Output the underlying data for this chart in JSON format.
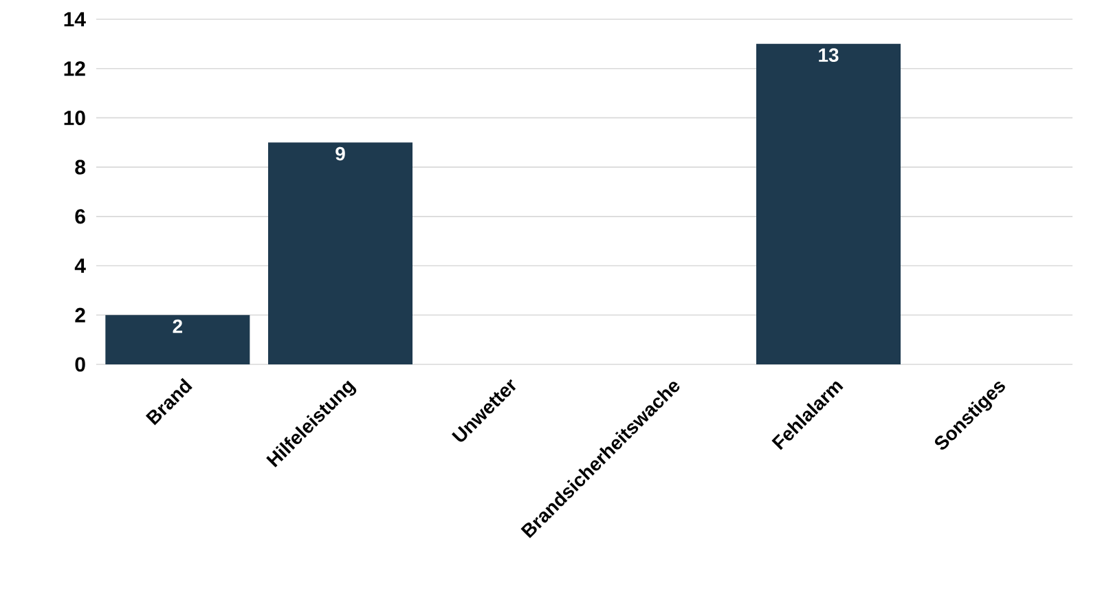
{
  "chart_data": {
    "type": "bar",
    "categories": [
      "Brand",
      "Hilfeleistung",
      "Unwetter",
      "Brandsicherheitswache",
      "Fehlalarm",
      "Sonstiges"
    ],
    "values": [
      2,
      9,
      0,
      0,
      13,
      0
    ],
    "value_labels": [
      "2",
      "9",
      null,
      null,
      "13",
      null
    ],
    "color": "#1e3a4f",
    "ylim": [
      0,
      14
    ],
    "yticks": [
      0,
      2,
      4,
      6,
      8,
      10,
      12,
      14
    ],
    "grid": "y"
  }
}
